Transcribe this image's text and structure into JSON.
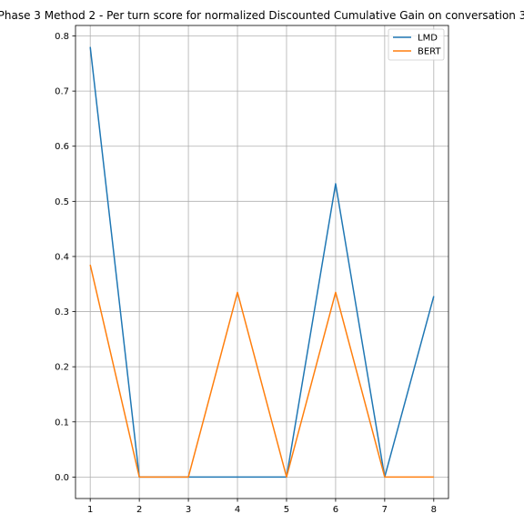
{
  "chart_data": {
    "type": "line",
    "title": "Phase 3 Method 2 - Per turn score for normalized Discounted Cumulative Gain on conversation 3",
    "xlabel": "",
    "ylabel": "",
    "x": [
      1,
      2,
      3,
      4,
      5,
      6,
      7,
      8
    ],
    "x_ticks": [
      "1",
      "2",
      "3",
      "4",
      "5",
      "6",
      "7",
      "8"
    ],
    "y_ticks": [
      "0.0",
      "0.1",
      "0.2",
      "0.3",
      "0.4",
      "0.5",
      "0.6",
      "0.7",
      "0.8"
    ],
    "xlim": [
      0.7,
      8.3
    ],
    "ylim": [
      -0.039,
      0.819
    ],
    "grid": true,
    "legend_position": "top-right",
    "series": [
      {
        "name": "LMD",
        "color": "#1f77b4",
        "values": [
          0.78,
          0.0,
          0.0,
          0.0,
          0.0,
          0.532,
          0.0,
          0.328
        ]
      },
      {
        "name": "BERT",
        "color": "#ff7f0e",
        "values": [
          0.385,
          0.0,
          0.0,
          0.335,
          0.0,
          0.335,
          0.0,
          0.0
        ]
      }
    ]
  }
}
